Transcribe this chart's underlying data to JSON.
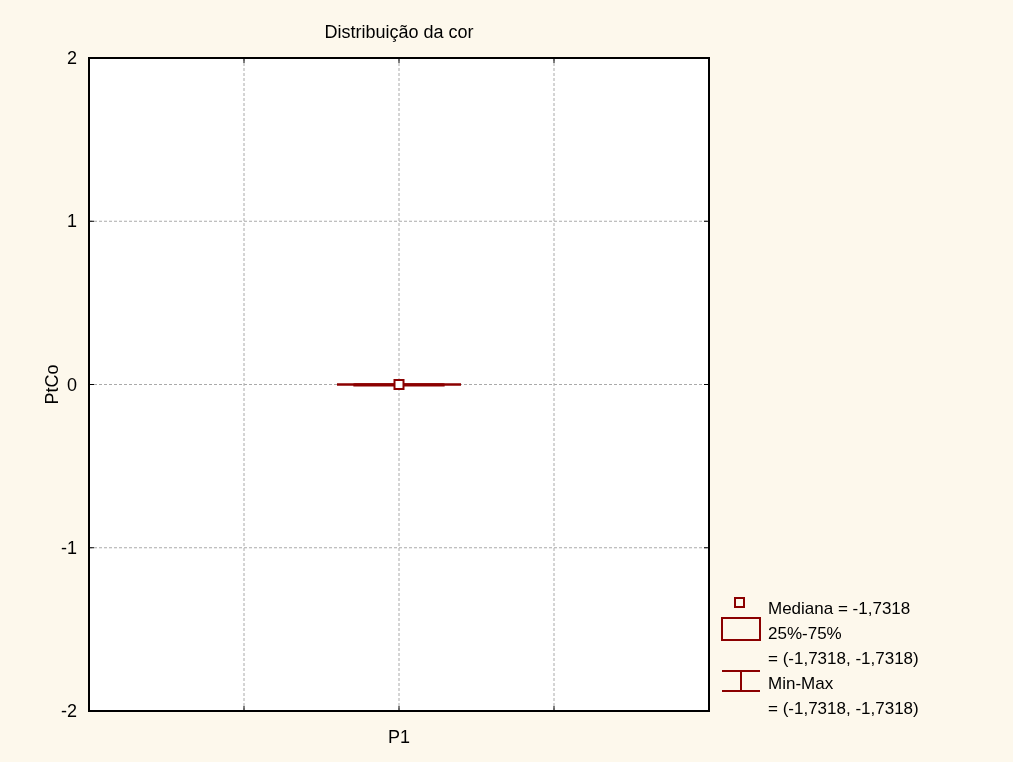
{
  "chart_data": {
    "type": "box",
    "title": "Distribuição da cor",
    "ylabel": "PtCo",
    "categories": [
      "P1"
    ],
    "color": "#8b0000",
    "boxes": [
      {
        "low": 0,
        "q1": 0,
        "median": 0,
        "q3": 0,
        "high": 0
      }
    ],
    "series": [
      {
        "type": "scatter",
        "x": [
          "P1"
        ],
        "values": [
          0
        ],
        "color": "#8b0000",
        "marker": "square"
      }
    ],
    "ylim": [
      -2,
      2
    ],
    "yticks": [
      -2,
      -1,
      0,
      1,
      2
    ],
    "grid": true,
    "annotations": [
      "Mediana = -1,7318",
      "25%-75%",
      "= (-1,7318, -1,7318)",
      "Min-Max",
      "= (-1,7318, -1,7318)"
    ]
  }
}
